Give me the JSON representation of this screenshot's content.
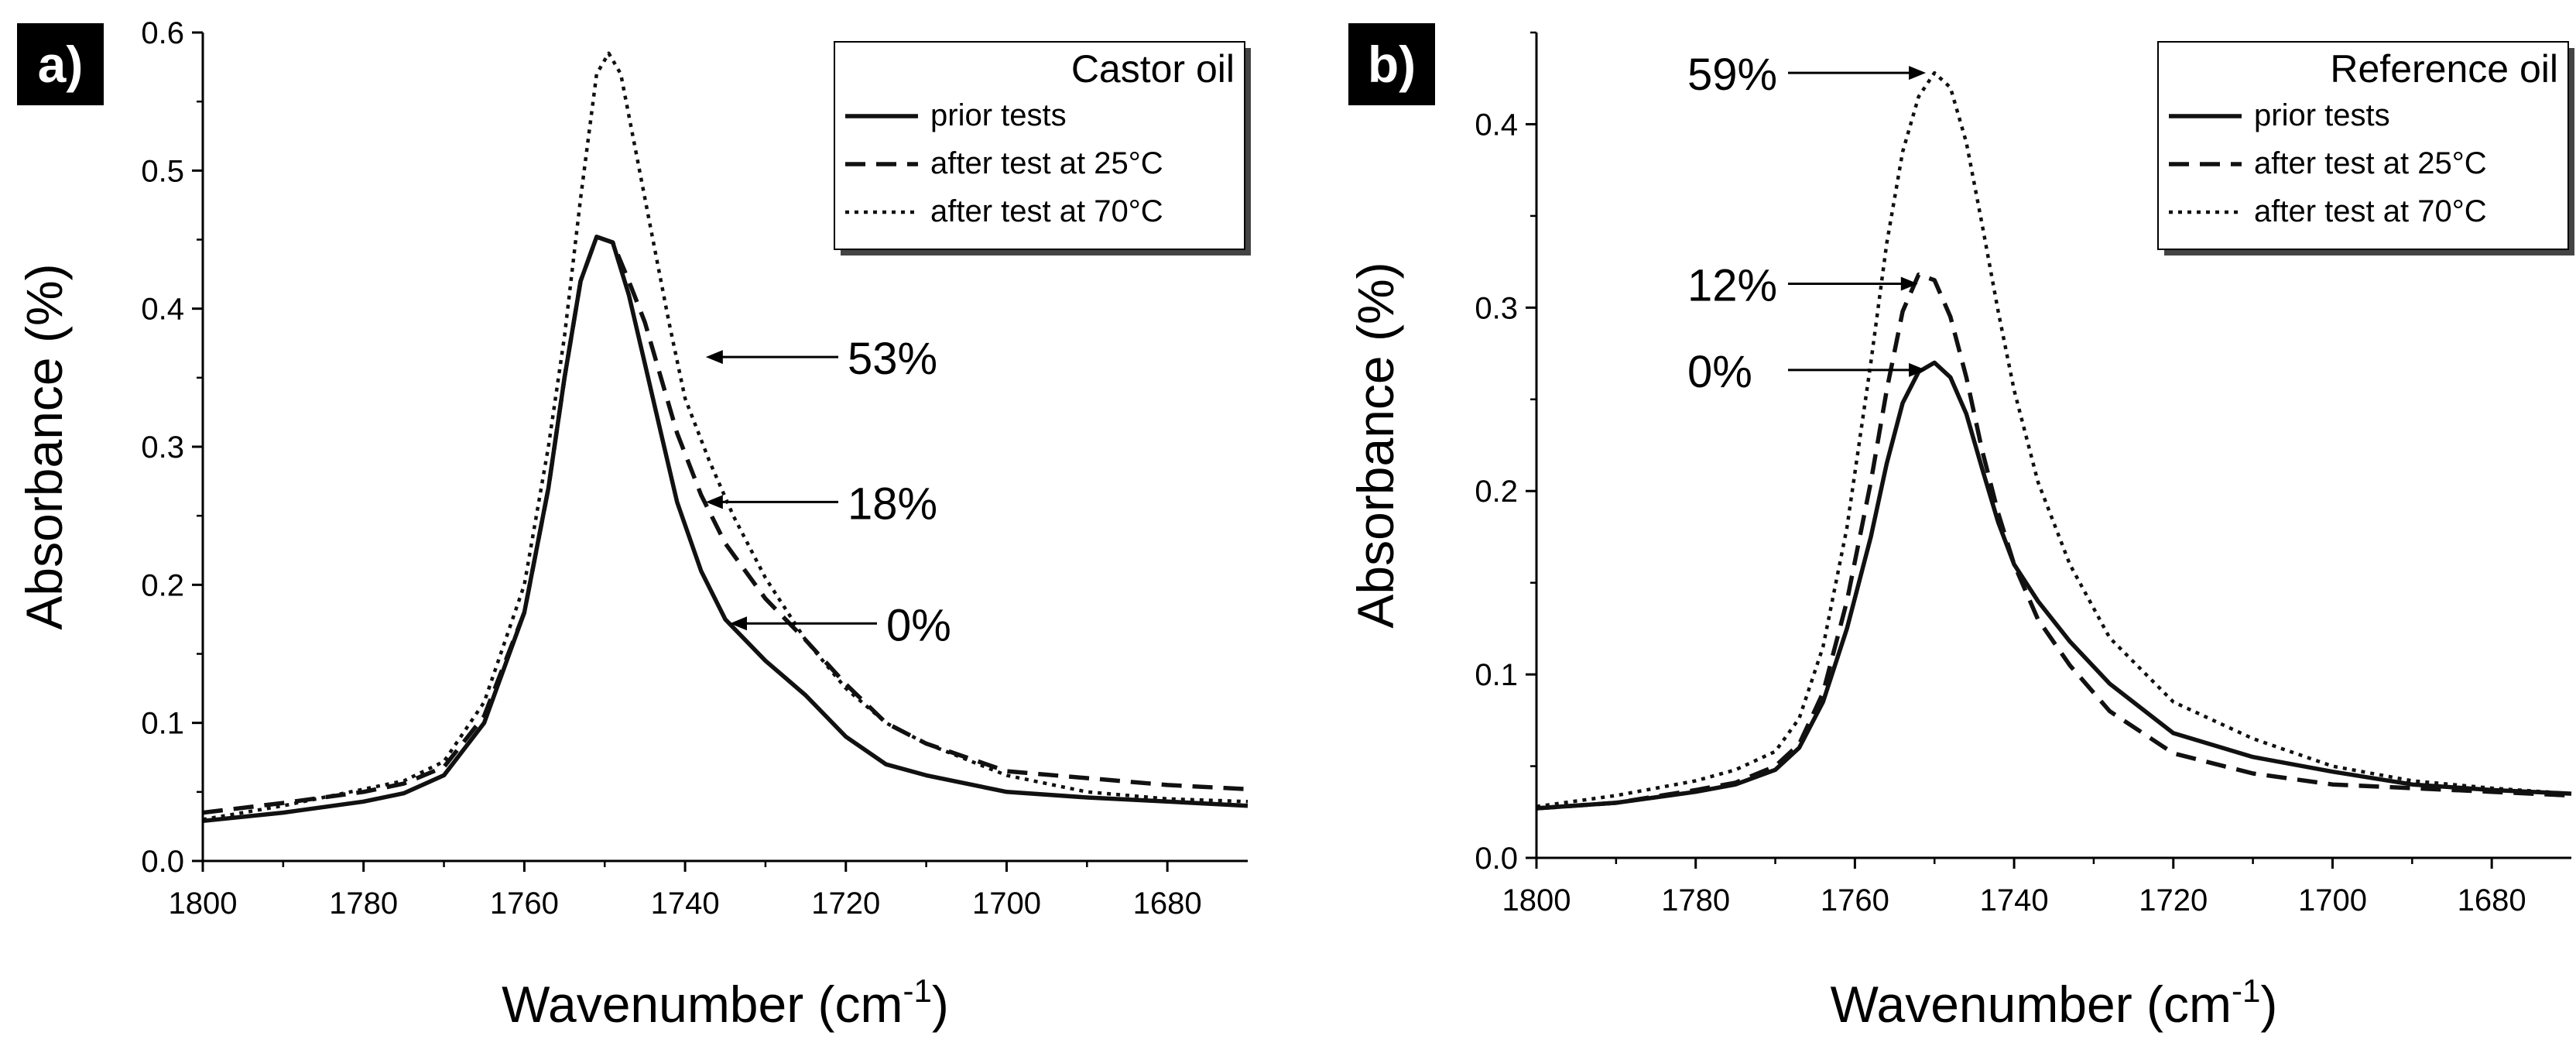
{
  "chart_data": [
    {
      "type": "line",
      "panel_label": "a)",
      "legend_title": "Castor oil",
      "xlabel": "Wavenumber (cm",
      "xlabel_sup": "-1",
      "xlabel_close": ")",
      "ylabel": "Absorbance (%)",
      "xlim": [
        1800,
        1670
      ],
      "ylim": [
        0.0,
        0.6
      ],
      "x_ticks": [
        1800,
        1780,
        1760,
        1740,
        1720,
        1700,
        1680
      ],
      "y_ticks": [
        0.0,
        0.1,
        0.2,
        0.3,
        0.4,
        0.5,
        0.6
      ],
      "grid": false,
      "legend_position": "top-right",
      "series": [
        {
          "name": "prior tests",
          "style": "solid",
          "x": [
            1800,
            1790,
            1780,
            1775,
            1770,
            1765,
            1760,
            1757,
            1755,
            1753,
            1751,
            1749,
            1747,
            1745,
            1743,
            1741,
            1738,
            1735,
            1730,
            1725,
            1720,
            1715,
            1710,
            1700,
            1690,
            1680,
            1670
          ],
          "y": [
            0.029,
            0.035,
            0.043,
            0.049,
            0.062,
            0.1,
            0.18,
            0.27,
            0.35,
            0.42,
            0.452,
            0.448,
            0.41,
            0.36,
            0.31,
            0.26,
            0.21,
            0.175,
            0.145,
            0.12,
            0.09,
            0.07,
            0.062,
            0.05,
            0.046,
            0.043,
            0.04
          ]
        },
        {
          "name": "after test at 25°C",
          "style": "dashed",
          "x": [
            1800,
            1790,
            1780,
            1775,
            1770,
            1765,
            1760,
            1757,
            1755,
            1753,
            1751,
            1749,
            1747,
            1745,
            1743,
            1741,
            1738,
            1735,
            1730,
            1725,
            1720,
            1715,
            1710,
            1700,
            1690,
            1680,
            1670
          ],
          "y": [
            0.035,
            0.042,
            0.05,
            0.056,
            0.068,
            0.105,
            0.18,
            0.27,
            0.35,
            0.42,
            0.452,
            0.448,
            0.42,
            0.39,
            0.35,
            0.31,
            0.265,
            0.23,
            0.19,
            0.16,
            0.128,
            0.1,
            0.085,
            0.065,
            0.06,
            0.055,
            0.052
          ]
        },
        {
          "name": "after test at 70°C",
          "style": "dotted",
          "x": [
            1800,
            1790,
            1780,
            1775,
            1770,
            1765,
            1760,
            1757,
            1755,
            1753,
            1751,
            1749.5,
            1748,
            1746,
            1744,
            1742,
            1740,
            1737,
            1734,
            1730,
            1725,
            1720,
            1715,
            1710,
            1700,
            1690,
            1680,
            1670
          ],
          "y": [
            0.03,
            0.04,
            0.052,
            0.058,
            0.072,
            0.115,
            0.2,
            0.3,
            0.38,
            0.48,
            0.57,
            0.585,
            0.57,
            0.51,
            0.45,
            0.39,
            0.335,
            0.29,
            0.25,
            0.205,
            0.16,
            0.125,
            0.1,
            0.085,
            0.062,
            0.05,
            0.045,
            0.043
          ]
        }
      ],
      "annotations": [
        {
          "text": "53%",
          "target_x": 1738,
          "target_y": 0.365
        },
        {
          "text": "18%",
          "target_x": 1738,
          "target_y": 0.26
        },
        {
          "text": "0%",
          "target_x": 1735,
          "target_y": 0.172
        }
      ]
    },
    {
      "type": "line",
      "panel_label": "b)",
      "legend_title": "Reference oil",
      "xlabel": "Wavenumber (cm",
      "xlabel_sup": "-1",
      "xlabel_close": ")",
      "ylabel": "Absorbance (%)",
      "xlim": [
        1800,
        1670
      ],
      "ylim": [
        0.0,
        0.45
      ],
      "x_ticks": [
        1800,
        1780,
        1760,
        1740,
        1720,
        1700,
        1680
      ],
      "y_ticks": [
        0.0,
        0.1,
        0.2,
        0.3,
        0.4
      ],
      "grid": false,
      "legend_position": "top-right",
      "series": [
        {
          "name": "prior tests",
          "style": "solid",
          "x": [
            1800,
            1790,
            1780,
            1775,
            1770,
            1767,
            1764,
            1761,
            1758,
            1756,
            1754,
            1752,
            1750,
            1748,
            1746,
            1744,
            1742,
            1740,
            1737,
            1733,
            1728,
            1720,
            1710,
            1700,
            1690,
            1680,
            1670
          ],
          "y": [
            0.027,
            0.03,
            0.036,
            0.04,
            0.048,
            0.06,
            0.085,
            0.125,
            0.175,
            0.215,
            0.248,
            0.265,
            0.27,
            0.262,
            0.242,
            0.212,
            0.183,
            0.16,
            0.14,
            0.118,
            0.095,
            0.068,
            0.055,
            0.047,
            0.04,
            0.037,
            0.035
          ]
        },
        {
          "name": "after test at 25°C",
          "style": "dashed",
          "x": [
            1800,
            1790,
            1780,
            1775,
            1770,
            1767,
            1764,
            1761,
            1758,
            1756,
            1754,
            1752,
            1750,
            1748,
            1746,
            1744,
            1742,
            1740,
            1737,
            1733,
            1728,
            1720,
            1710,
            1700,
            1690,
            1680,
            1670
          ],
          "y": [
            0.027,
            0.03,
            0.037,
            0.041,
            0.05,
            0.062,
            0.09,
            0.14,
            0.205,
            0.255,
            0.298,
            0.318,
            0.315,
            0.295,
            0.262,
            0.222,
            0.188,
            0.16,
            0.13,
            0.105,
            0.08,
            0.057,
            0.046,
            0.04,
            0.038,
            0.036,
            0.034
          ]
        },
        {
          "name": "after test at 70°C",
          "style": "dotted",
          "x": [
            1800,
            1790,
            1780,
            1775,
            1770,
            1767,
            1764,
            1761,
            1758,
            1756,
            1754,
            1752,
            1750,
            1748,
            1746,
            1744,
            1742,
            1740,
            1737,
            1733,
            1728,
            1720,
            1710,
            1700,
            1690,
            1680,
            1670
          ],
          "y": [
            0.028,
            0.034,
            0.042,
            0.048,
            0.058,
            0.076,
            0.115,
            0.18,
            0.27,
            0.335,
            0.385,
            0.415,
            0.428,
            0.42,
            0.39,
            0.345,
            0.298,
            0.255,
            0.205,
            0.16,
            0.12,
            0.085,
            0.065,
            0.05,
            0.042,
            0.038,
            0.035
          ]
        }
      ],
      "annotations": [
        {
          "text": "59%",
          "target_x": 1750.5,
          "target_y": 0.428
        },
        {
          "text": "12%",
          "target_x": 1751.5,
          "target_y": 0.313
        },
        {
          "text": "0%",
          "target_x": 1750.5,
          "target_y": 0.266
        }
      ]
    }
  ]
}
